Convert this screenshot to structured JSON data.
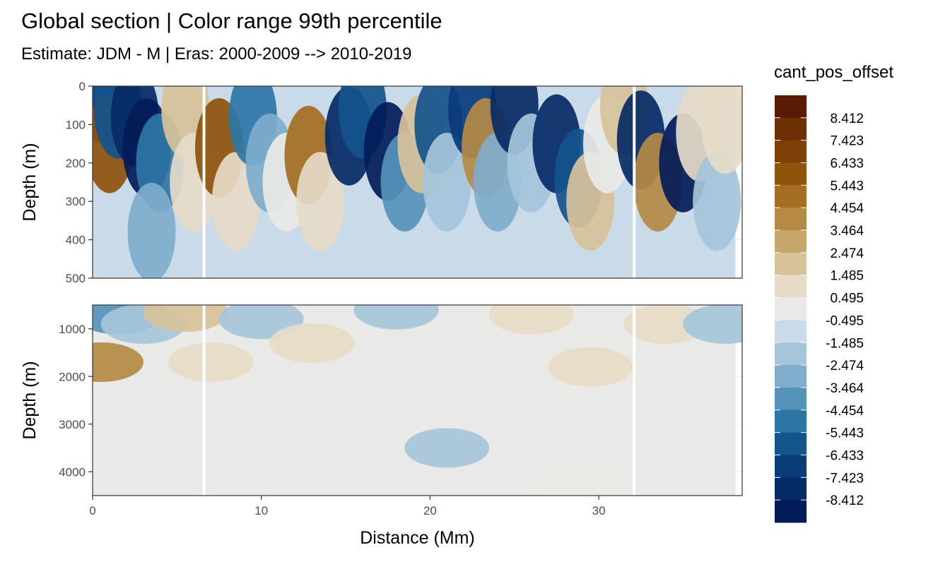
{
  "chart_data": {
    "type": "heatmap",
    "title": "Global section | Color range 99th percentile",
    "subtitle": "Estimate: JDM - M | Eras: 2000-2009 --> 2010-2019",
    "xlabel": "Distance (Mm)",
    "ylabel": "Depth (m)",
    "xlim": [
      0,
      38.5
    ],
    "x_ticks": [
      0,
      10,
      20,
      30
    ],
    "grid": true,
    "gap_lines_x": [
      6.6,
      32.1
    ],
    "panels": [
      {
        "name": "upper",
        "ylim": [
          0,
          500
        ],
        "y_ticks": [
          0,
          100,
          200,
          300,
          400,
          500
        ],
        "reversed": true
      },
      {
        "name": "lower",
        "ylim": [
          500,
          4500
        ],
        "y_ticks": [
          1000,
          2000,
          3000,
          4000
        ],
        "reversed": true
      }
    ],
    "legend": {
      "title": "cant_pos_offset",
      "position": "right",
      "labels": [
        "8.412",
        "7.423",
        "6.433",
        "5.443",
        "4.454",
        "3.464",
        "2.474",
        "1.485",
        "0.495",
        "-0.495",
        "-1.485",
        "-2.474",
        "-3.464",
        "-4.454",
        "-5.443",
        "-6.433",
        "-7.423",
        "-8.412"
      ],
      "colors": [
        "#5a1b05",
        "#6e2e06",
        "#7f4008",
        "#8f530c",
        "#a36e22",
        "#b48a45",
        "#c6a66a",
        "#d7c29a",
        "#e6dbc7",
        "#e9eae7",
        "#c9dbe8",
        "#a5c6da",
        "#7fadcb",
        "#5592b8",
        "#2c76a6",
        "#14548c",
        "#0a3b79",
        "#062a66",
        "#031c58"
      ]
    },
    "sections": {
      "upper": [
        {
          "x": 0.5,
          "depth": 20,
          "value": -6.4
        },
        {
          "x": 1.0,
          "depth": 150,
          "value": 6.4
        },
        {
          "x": 1.5,
          "depth": 60,
          "value": -5.4
        },
        {
          "x": 2.5,
          "depth": 80,
          "value": -7.4
        },
        {
          "x": 3.2,
          "depth": 160,
          "value": -8.4
        },
        {
          "x": 4.0,
          "depth": 200,
          "value": -4.5
        },
        {
          "x": 3.5,
          "depth": 380,
          "value": -2.5
        },
        {
          "x": 5.5,
          "depth": 60,
          "value": 2.5
        },
        {
          "x": 6.0,
          "depth": 250,
          "value": 1.5
        },
        {
          "x": 7.5,
          "depth": 160,
          "value": 6.4
        },
        {
          "x": 8.5,
          "depth": 300,
          "value": 1.5
        },
        {
          "x": 9.5,
          "depth": 80,
          "value": -4.5
        },
        {
          "x": 10.5,
          "depth": 200,
          "value": -2.5
        },
        {
          "x": 11.5,
          "depth": 250,
          "value": 0.5
        },
        {
          "x": 12.8,
          "depth": 180,
          "value": 5.4
        },
        {
          "x": 13.5,
          "depth": 300,
          "value": 1.5
        },
        {
          "x": 15.2,
          "depth": 130,
          "value": -7.4
        },
        {
          "x": 16.0,
          "depth": 60,
          "value": -5.4
        },
        {
          "x": 17.5,
          "depth": 170,
          "value": -8.4
        },
        {
          "x": 18.5,
          "depth": 250,
          "value": -3.5
        },
        {
          "x": 19.5,
          "depth": 150,
          "value": 2.5
        },
        {
          "x": 20.5,
          "depth": 100,
          "value": -5.4
        },
        {
          "x": 21.0,
          "depth": 250,
          "value": -1.5
        },
        {
          "x": 22.5,
          "depth": 60,
          "value": -6.4
        },
        {
          "x": 23.3,
          "depth": 160,
          "value": 4.5
        },
        {
          "x": 24.0,
          "depth": 250,
          "value": -2.5
        },
        {
          "x": 25.0,
          "depth": 50,
          "value": -7.4
        },
        {
          "x": 26.0,
          "depth": 200,
          "value": -1.5
        },
        {
          "x": 27.5,
          "depth": 150,
          "value": -7.4
        },
        {
          "x": 28.8,
          "depth": 240,
          "value": -5.4
        },
        {
          "x": 29.5,
          "depth": 300,
          "value": 2.5
        },
        {
          "x": 30.5,
          "depth": 150,
          "value": 0.5
        },
        {
          "x": 31.5,
          "depth": 50,
          "value": 2.5
        },
        {
          "x": 32.5,
          "depth": 140,
          "value": -7.4
        },
        {
          "x": 33.5,
          "depth": 250,
          "value": 4.5
        },
        {
          "x": 35.0,
          "depth": 200,
          "value": -8.4
        },
        {
          "x": 36.0,
          "depth": 120,
          "value": 1.5
        },
        {
          "x": 37.0,
          "depth": 300,
          "value": -1.5
        },
        {
          "x": 37.5,
          "depth": 100,
          "value": 1.5
        }
      ],
      "lower": [
        {
          "x": 1.5,
          "depth": 700,
          "value": -3.5
        },
        {
          "x": 3.0,
          "depth": 900,
          "value": -1.5
        },
        {
          "x": 5.5,
          "depth": 650,
          "value": 2.5
        },
        {
          "x": 7.0,
          "depth": 1700,
          "value": 1.5
        },
        {
          "x": 0.5,
          "depth": 1700,
          "value": 4.5
        },
        {
          "x": 10.0,
          "depth": 800,
          "value": -1.5
        },
        {
          "x": 13.0,
          "depth": 1300,
          "value": 1.5
        },
        {
          "x": 18.0,
          "depth": 600,
          "value": -1.5
        },
        {
          "x": 21.0,
          "depth": 3500,
          "value": -1.5
        },
        {
          "x": 26.0,
          "depth": 700,
          "value": 1.5
        },
        {
          "x": 29.5,
          "depth": 1800,
          "value": 1.5
        },
        {
          "x": 34.0,
          "depth": 900,
          "value": 1.5
        },
        {
          "x": 29.0,
          "depth": 4300,
          "value": 0.5
        },
        {
          "x": 37.5,
          "depth": 900,
          "value": -1.5
        }
      ]
    }
  }
}
